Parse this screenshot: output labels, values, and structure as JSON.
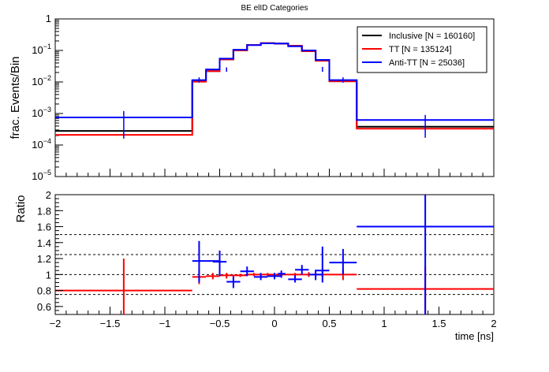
{
  "chart_data": [
    {
      "type": "line",
      "title": "BE elID Categories",
      "xlabel": "time [ns]",
      "ylabel": "frac. Events/Bin",
      "yscale": "log",
      "xlim": [
        -2,
        2
      ],
      "ylim": [
        1e-05,
        1
      ],
      "y_ticks": [
        {
          "label": "1",
          "value": 1
        },
        {
          "label": "10",
          "sup": "−1",
          "value": 0.1
        },
        {
          "label": "10",
          "sup": "−2",
          "value": 0.01
        },
        {
          "label": "10",
          "sup": "−3",
          "value": 0.001
        },
        {
          "label": "10",
          "sup": "−4",
          "value": 0.0001
        },
        {
          "label": "10",
          "sup": "−5",
          "value": 1e-05
        }
      ],
      "legend_position": "top-right",
      "bin_edges": [
        -2,
        -0.75,
        -0.625,
        -0.5,
        -0.375,
        -0.25,
        -0.125,
        0,
        0.125,
        0.25,
        0.375,
        0.5,
        0.75,
        2
      ],
      "series": [
        {
          "name": "Inclusive [N = 160160]",
          "color": "#000000",
          "values": [
            0.00028,
            0.0105,
            0.022,
            0.052,
            0.1,
            0.15,
            0.17,
            0.165,
            0.14,
            0.095,
            0.048,
            0.0105,
            0.00038
          ]
        },
        {
          "name": "TT [N = 135124]",
          "color": "#ff0000",
          "values": [
            0.00021,
            0.0102,
            0.022,
            0.052,
            0.1,
            0.15,
            0.17,
            0.165,
            0.14,
            0.095,
            0.047,
            0.0105,
            0.00033
          ]
        },
        {
          "name": "Anti-TT [N = 25036]",
          "color": "#0000ff",
          "values": [
            0.00075,
            0.0115,
            0.025,
            0.055,
            0.105,
            0.148,
            0.168,
            0.165,
            0.135,
            0.1,
            0.05,
            0.0115,
            0.00062
          ],
          "error_bars": [
            {
              "x": -1.375,
              "lo": 0.00016,
              "hi": 0.0012
            },
            {
              "x": -0.6875,
              "lo": 0.0095,
              "hi": 0.014
            },
            {
              "x": -0.4375,
              "lo": 0.021,
              "hi": 0.029
            },
            {
              "x": 0.4375,
              "lo": 0.021,
              "hi": 0.03
            },
            {
              "x": 0.625,
              "lo": 0.0095,
              "hi": 0.014
            },
            {
              "x": 1.375,
              "lo": 0.00017,
              "hi": 0.0009
            }
          ]
        }
      ]
    },
    {
      "type": "scatter",
      "xlabel": "time [ns]",
      "ylabel": "Ratio",
      "xlim": [
        -2,
        2
      ],
      "ylim": [
        0.5,
        2
      ],
      "x_ticks": [
        "−2",
        "−1.5",
        "−1",
        "−0.5",
        "0",
        "0.5",
        "1",
        "1.5",
        "2"
      ],
      "y_ticks": [
        "0.6",
        "0.8",
        "1",
        "1.2",
        "1.4",
        "1.6",
        "1.8",
        "2"
      ],
      "reference_lines": [
        0.75,
        1.0,
        1.25,
        1.5
      ],
      "series": [
        {
          "color": "#ff0000",
          "points": [
            {
              "x": -1.375,
              "x0": -2,
              "x1": -0.75,
              "y": 0.8,
              "ylo": 0.5,
              "yhi": 1.2
            },
            {
              "x": -0.6875,
              "x0": -0.75,
              "x1": -0.625,
              "y": 0.97,
              "ylo": 0.88,
              "yhi": 1.06
            },
            {
              "x": -0.5625,
              "x0": -0.625,
              "x1": -0.5,
              "y": 0.98,
              "ylo": 0.94,
              "yhi": 1.02
            },
            {
              "x": -0.4375,
              "x0": -0.5,
              "x1": -0.375,
              "y": 0.99,
              "ylo": 0.95,
              "yhi": 1.02
            },
            {
              "x": -0.3125,
              "x0": -0.375,
              "x1": -0.25,
              "y": 0.99,
              "ylo": 0.97,
              "yhi": 1.01
            },
            {
              "x": -0.1875,
              "x0": -0.25,
              "x1": -0.125,
              "y": 1.0,
              "ylo": 0.98,
              "yhi": 1.02
            },
            {
              "x": -0.0625,
              "x0": -0.125,
              "x1": 0,
              "y": 1.0,
              "ylo": 0.98,
              "yhi": 1.02
            },
            {
              "x": 0.0625,
              "x0": 0,
              "x1": 0.125,
              "y": 1.0,
              "ylo": 0.98,
              "yhi": 1.02
            },
            {
              "x": 0.1875,
              "x0": 0.125,
              "x1": 0.25,
              "y": 1.0,
              "ylo": 0.98,
              "yhi": 1.02
            },
            {
              "x": 0.3125,
              "x0": 0.25,
              "x1": 0.375,
              "y": 1.0,
              "ylo": 0.97,
              "yhi": 1.03
            },
            {
              "x": 0.4375,
              "x0": 0.375,
              "x1": 0.5,
              "y": 1.0,
              "ylo": 0.96,
              "yhi": 1.04
            },
            {
              "x": 0.625,
              "x0": 0.5,
              "x1": 0.75,
              "y": 1.0,
              "ylo": 0.93,
              "yhi": 1.07
            },
            {
              "x": 1.375,
              "x0": 0.75,
              "x1": 2,
              "y": 0.82,
              "ylo": 0.5,
              "yhi": 1.1
            }
          ]
        },
        {
          "color": "#0000ff",
          "points": [
            {
              "x": -0.6875,
              "x0": -0.75,
              "x1": -0.5,
              "y": 1.17,
              "ylo": 0.9,
              "yhi": 1.42
            },
            {
              "x": -0.5,
              "x0": -0.5625,
              "x1": -0.4375,
              "y": 1.16,
              "ylo": 0.98,
              "yhi": 1.3
            },
            {
              "x": -0.375,
              "x0": -0.4375,
              "x1": -0.3125,
              "y": 0.91,
              "ylo": 0.83,
              "yhi": 0.98
            },
            {
              "x": -0.25,
              "x0": -0.3125,
              "x1": -0.1875,
              "y": 1.04,
              "ylo": 0.98,
              "yhi": 1.1
            },
            {
              "x": -0.125,
              "x0": -0.1875,
              "x1": -0.0625,
              "y": 0.97,
              "ylo": 0.93,
              "yhi": 1.02
            },
            {
              "x": 0,
              "x0": -0.0625,
              "x1": 0.0625,
              "y": 0.98,
              "ylo": 0.94,
              "yhi": 1.02
            },
            {
              "x": 0.0625,
              "x0": 0.03,
              "x1": 0.1,
              "y": 1.01,
              "ylo": 0.96,
              "yhi": 1.05
            },
            {
              "x": 0.1875,
              "x0": 0.125,
              "x1": 0.25,
              "y": 0.94,
              "ylo": 0.9,
              "yhi": 0.99
            },
            {
              "x": 0.25,
              "x0": 0.1875,
              "x1": 0.3125,
              "y": 1.06,
              "ylo": 1.0,
              "yhi": 1.12
            },
            {
              "x": 0.375,
              "x0": 0.3125,
              "x1": 0.4375,
              "y": 1.0,
              "ylo": 0.93,
              "yhi": 1.06
            },
            {
              "x": 0.4375,
              "x0": 0.375,
              "x1": 0.5,
              "y": 1.05,
              "ylo": 0.9,
              "yhi": 1.35
            },
            {
              "x": 0.625,
              "x0": 0.5,
              "x1": 0.75,
              "y": 1.15,
              "ylo": 1.0,
              "yhi": 1.32
            },
            {
              "x": 1.375,
              "x0": 0.75,
              "x1": 2,
              "y": 1.6,
              "ylo": 0.5,
              "yhi": 2.0
            }
          ]
        }
      ]
    }
  ]
}
